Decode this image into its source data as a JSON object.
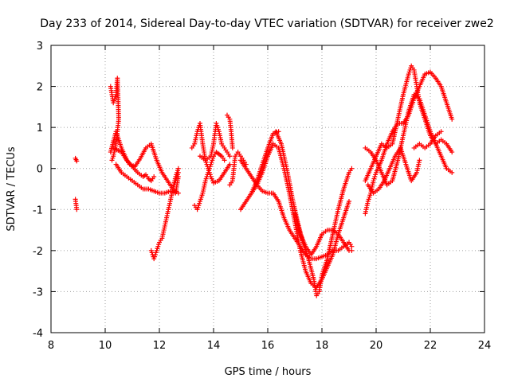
{
  "chart_data": {
    "type": "scatter",
    "title": "Day 233 of 2014, Sidereal Day-to-day VTEC variation (SDTVAR) for receiver zwe2",
    "xlabel": "GPS time / hours",
    "ylabel": "SDTVAR / TECUs",
    "xlim": [
      8,
      24
    ],
    "ylim": [
      -4,
      3
    ],
    "xticks": [
      8,
      10,
      12,
      14,
      16,
      18,
      20,
      22,
      24
    ],
    "yticks": [
      -4,
      -3,
      -2,
      -1,
      0,
      1,
      2,
      3
    ],
    "grid": true,
    "marker": "+",
    "color": "#ff0000",
    "series": [
      {
        "name": "tracks",
        "segments": [
          {
            "x": [
              8.9,
              8.95
            ],
            "y": [
              0.25,
              0.18
            ]
          },
          {
            "x": [
              8.9,
              8.95
            ],
            "y": [
              -0.75,
              -1.0
            ]
          },
          {
            "x": [
              10.2,
              10.3,
              10.4,
              10.45,
              10.5,
              10.4,
              10.3,
              10.25
            ],
            "y": [
              2.0,
              1.6,
              1.8,
              2.2,
              1.2,
              0.6,
              0.3,
              0.2
            ]
          },
          {
            "x": [
              10.2,
              10.4,
              10.6,
              10.8,
              11.0,
              11.2,
              11.4,
              11.5,
              11.6,
              11.7,
              11.8
            ],
            "y": [
              0.4,
              0.9,
              0.5,
              0.2,
              0.05,
              -0.1,
              -0.2,
              -0.15,
              -0.25,
              -0.3,
              -0.2
            ]
          },
          {
            "x": [
              10.3,
              10.6,
              10.9,
              11.1,
              11.3,
              11.5,
              11.7,
              11.9,
              12.1,
              12.3,
              12.5,
              12.7
            ],
            "y": [
              0.5,
              0.4,
              0.1,
              0.05,
              0.25,
              0.5,
              0.6,
              0.2,
              -0.1,
              -0.3,
              -0.5,
              -0.6
            ]
          },
          {
            "x": [
              10.4,
              10.6,
              10.8,
              11.0,
              11.2,
              11.4,
              11.6,
              11.8,
              12.0,
              12.2,
              12.4,
              12.6,
              12.7
            ],
            "y": [
              0.1,
              -0.1,
              -0.2,
              -0.3,
              -0.4,
              -0.5,
              -0.5,
              -0.55,
              -0.6,
              -0.6,
              -0.55,
              -0.6,
              -0.2
            ]
          },
          {
            "x": [
              11.7,
              11.8,
              11.9,
              12.0,
              12.1,
              12.2,
              12.3,
              12.4,
              12.5,
              12.6,
              12.7
            ],
            "y": [
              -2.0,
              -2.2,
              -2.0,
              -1.8,
              -1.7,
              -1.4,
              -1.1,
              -0.8,
              -0.5,
              -0.2,
              0.0
            ]
          },
          {
            "x": [
              12.7,
              12.6,
              12.5
            ],
            "y": [
              -0.1,
              -0.3,
              -0.5
            ]
          },
          {
            "x": [
              13.3,
              13.4,
              13.5,
              13.6,
              13.7,
              13.8,
              13.9,
              14.0,
              14.1,
              14.2,
              14.3,
              14.4
            ],
            "y": [
              -0.9,
              -1.0,
              -0.8,
              -0.6,
              -0.3,
              -0.1,
              0.1,
              0.3,
              0.4,
              0.35,
              0.3,
              0.2
            ]
          },
          {
            "x": [
              13.2,
              13.3,
              13.4,
              13.5,
              13.6,
              13.7,
              13.8,
              13.9,
              14.0,
              14.2,
              14.4,
              14.6
            ],
            "y": [
              0.5,
              0.6,
              0.9,
              1.1,
              0.6,
              0.2,
              0.0,
              -0.2,
              -0.35,
              -0.3,
              -0.1,
              0.1
            ]
          },
          {
            "x": [
              13.5,
              13.7,
              13.9,
              14.0,
              14.1,
              14.2,
              14.3,
              14.4,
              14.5,
              14.6
            ],
            "y": [
              0.3,
              0.2,
              0.3,
              0.6,
              1.1,
              0.9,
              0.6,
              0.5,
              0.4,
              0.3
            ]
          },
          {
            "x": [
              14.5,
              14.6,
              14.65,
              14.7
            ],
            "y": [
              1.3,
              1.2,
              0.9,
              0.5
            ]
          },
          {
            "x": [
              14.6,
              14.7,
              14.8,
              14.9,
              15.0,
              15.1,
              15.2
            ],
            "y": [
              -0.4,
              -0.3,
              0.3,
              0.4,
              0.3,
              0.2,
              0.1
            ]
          },
          {
            "x": [
              15.0,
              15.2,
              15.4,
              15.6,
              15.8,
              16.0,
              16.2,
              16.4
            ],
            "y": [
              -1.0,
              -0.8,
              -0.6,
              -0.3,
              0.1,
              0.5,
              0.85,
              0.9
            ]
          },
          {
            "x": [
              15.0,
              15.2,
              15.4,
              15.6,
              15.8,
              16.0,
              16.2,
              16.4,
              16.6,
              16.8,
              17.0,
              17.2,
              17.4,
              17.6,
              17.8,
              18.0,
              18.2,
              18.4,
              18.6,
              18.8,
              19.0,
              19.1
            ],
            "y": [
              0.2,
              0.0,
              -0.2,
              -0.4,
              -0.55,
              -0.6,
              -0.6,
              -0.8,
              -1.2,
              -1.5,
              -1.7,
              -1.9,
              -2.1,
              -2.2,
              -2.2,
              -2.15,
              -2.1,
              -2.0,
              -2.0,
              -1.9,
              -1.8,
              -1.9
            ]
          },
          {
            "x": [
              15.4,
              15.6,
              15.8,
              16.0,
              16.2,
              16.4,
              16.6,
              16.8,
              17.0,
              17.2,
              17.4,
              17.6,
              17.8,
              18.0,
              18.2,
              18.4,
              18.6,
              18.8,
              19.0
            ],
            "y": [
              -0.6,
              -0.4,
              -0.1,
              0.3,
              0.6,
              0.5,
              0.0,
              -0.6,
              -1.3,
              -2.0,
              -2.5,
              -2.8,
              -2.9,
              -2.7,
              -2.4,
              -2.1,
              -1.6,
              -1.2,
              -0.8
            ]
          },
          {
            "x": [
              16.3,
              16.5,
              16.7,
              16.9,
              17.1,
              17.3,
              17.5,
              17.7,
              17.8,
              17.9,
              18.0,
              18.2,
              18.4,
              18.6,
              18.8,
              19.0,
              19.1
            ],
            "y": [
              0.9,
              0.6,
              0.0,
              -0.7,
              -1.3,
              -1.8,
              -2.2,
              -2.7,
              -3.1,
              -3.0,
              -2.6,
              -2.2,
              -1.6,
              -1.0,
              -0.5,
              -0.1,
              0.0
            ]
          },
          {
            "x": [
              17.0,
              17.2,
              17.4,
              17.6,
              17.8,
              18.0,
              18.2,
              18.4,
              18.6,
              18.8,
              19.0,
              19.1
            ],
            "y": [
              -1.1,
              -1.6,
              -1.9,
              -2.1,
              -1.9,
              -1.6,
              -1.5,
              -1.5,
              -1.6,
              -1.8,
              -2.0,
              -2.0
            ]
          },
          {
            "x": [
              19.6,
              19.7,
              19.8,
              19.9,
              20.0,
              20.2,
              20.4,
              20.6,
              20.8,
              21.0,
              21.2,
              21.4,
              21.6,
              21.8,
              22.0,
              22.2,
              22.4,
              22.6,
              22.8
            ],
            "y": [
              -1.1,
              -0.8,
              -0.6,
              -0.3,
              -0.1,
              0.2,
              0.6,
              0.9,
              1.1,
              1.1,
              1.3,
              1.7,
              2.0,
              2.3,
              2.35,
              2.2,
              2.0,
              1.6,
              1.2
            ]
          },
          {
            "x": [
              19.6,
              19.8,
              20.0,
              20.2,
              20.4,
              20.6,
              20.8,
              21.0,
              21.2,
              21.3,
              21.4,
              21.5,
              21.6,
              21.8,
              22.0,
              22.2,
              22.4,
              22.6,
              22.8
            ],
            "y": [
              -0.3,
              0.0,
              0.3,
              0.6,
              0.5,
              0.6,
              1.2,
              1.8,
              2.3,
              2.5,
              2.4,
              2.0,
              1.6,
              1.2,
              0.8,
              0.6,
              0.7,
              0.6,
              0.4
            ]
          },
          {
            "x": [
              19.6,
              19.8,
              20.0,
              20.2,
              20.4,
              20.6,
              20.8,
              21.0,
              21.2,
              21.4,
              21.6,
              21.8,
              22.0,
              22.2,
              22.4,
              22.6,
              22.8
            ],
            "y": [
              0.5,
              0.4,
              0.2,
              -0.1,
              -0.4,
              -0.3,
              0.2,
              0.8,
              1.4,
              1.8,
              1.7,
              1.3,
              0.9,
              0.6,
              0.3,
              0.0,
              -0.1
            ]
          },
          {
            "x": [
              19.7,
              19.9,
              20.1,
              20.3,
              20.5,
              20.7,
              20.9,
              21.1,
              21.3,
              21.5,
              21.6
            ],
            "y": [
              -0.4,
              -0.6,
              -0.5,
              -0.3,
              0.0,
              0.3,
              0.5,
              0.1,
              -0.3,
              -0.1,
              0.2
            ]
          },
          {
            "x": [
              21.4,
              21.6,
              21.8,
              22.0,
              22.2,
              22.4
            ],
            "y": [
              0.5,
              0.6,
              0.5,
              0.6,
              0.8,
              0.9
            ]
          }
        ]
      }
    ]
  }
}
